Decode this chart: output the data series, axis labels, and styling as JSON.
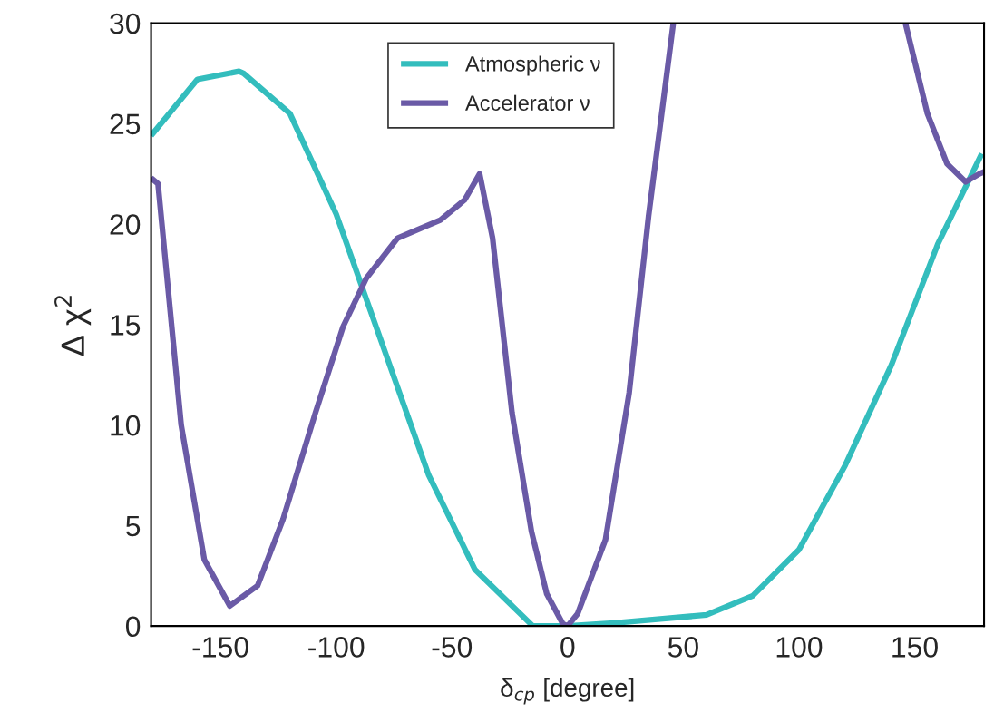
{
  "chart_data": {
    "type": "line",
    "xlabel": "δ$_{cp}$ [degree]",
    "ylabel": "Δ χ$^{2}$",
    "xlim": [
      -180,
      180
    ],
    "ylim": [
      0,
      30
    ],
    "xticks": [
      -150,
      -100,
      -50,
      0,
      50,
      100,
      150
    ],
    "yticks": [
      0,
      5,
      10,
      15,
      20,
      25,
      30
    ],
    "grid": false,
    "legend": "top",
    "marker": "none",
    "line_style": "solid",
    "series": [
      {
        "name": "Atmospheric ν",
        "color": "#33bdbd",
        "x": [
          -180,
          -160,
          -142,
          -140,
          -120,
          -100,
          -60,
          -40,
          -15,
          0,
          20,
          40,
          60,
          80,
          100,
          120,
          140,
          160,
          179
        ],
        "values": [
          24.4,
          27.2,
          27.6,
          27.5,
          25.5,
          20.5,
          7.5,
          2.8,
          0,
          0,
          0.15,
          0.35,
          0.55,
          1.5,
          3.8,
          8.0,
          13,
          19.0,
          23.5
        ]
      },
      {
        "name": "Accelerator ν",
        "color": "#6a5aa6",
        "x": [
          -180,
          -177,
          -167,
          -157,
          -146,
          -134,
          -123,
          -109,
          -97,
          -87,
          -73.5,
          -55,
          -44.5,
          -38,
          -32.4,
          -24,
          -15.6,
          -9,
          -2,
          0,
          4.3,
          16.4,
          26.6,
          35,
          45.7,
          null,
          146,
          155.5,
          164,
          172,
          178,
          180
        ],
        "values": [
          22.3,
          22.0,
          10,
          3.3,
          1.0,
          2.0,
          5.3,
          10.6,
          14.9,
          17.3,
          19.3,
          20.2,
          21.2,
          22.5,
          19.3,
          10.6,
          4.7,
          1.6,
          0.1,
          0,
          0.6,
          4.3,
          11.6,
          20.4,
          30,
          null,
          30,
          25.5,
          23,
          22.1,
          22.5,
          22.6
        ]
      }
    ]
  }
}
